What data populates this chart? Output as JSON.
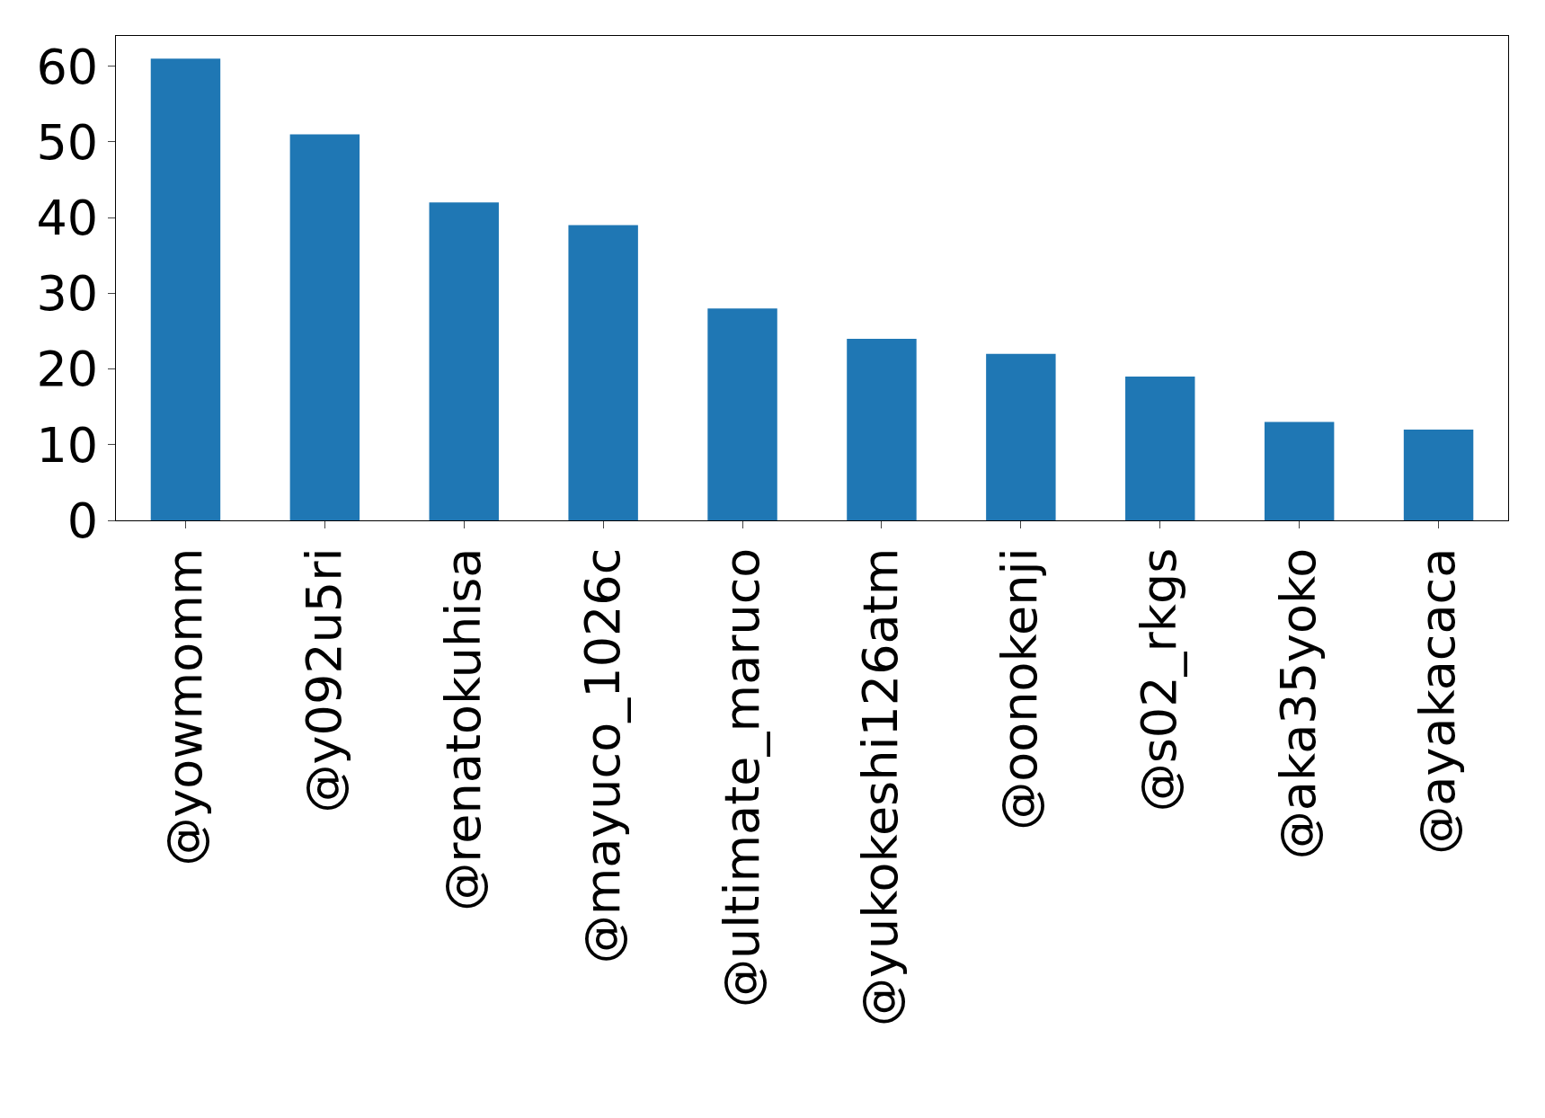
{
  "chart_data": {
    "type": "bar",
    "categories": [
      "@yowmomm",
      "@y092u5ri",
      "@renatokuhisa",
      "@mayuco_1026c",
      "@ultimate_maruco",
      "@yukokeshi126atm",
      "@oonokenji",
      "@s02_rkgs",
      "@aka35yoko",
      "@ayakacaca"
    ],
    "values": [
      61,
      51,
      42,
      39,
      28,
      24,
      22,
      19,
      13,
      12
    ],
    "color": "#1f77b4",
    "ylim": [
      0,
      64
    ],
    "yticks": [
      0,
      10,
      20,
      30,
      40,
      50,
      60
    ]
  }
}
